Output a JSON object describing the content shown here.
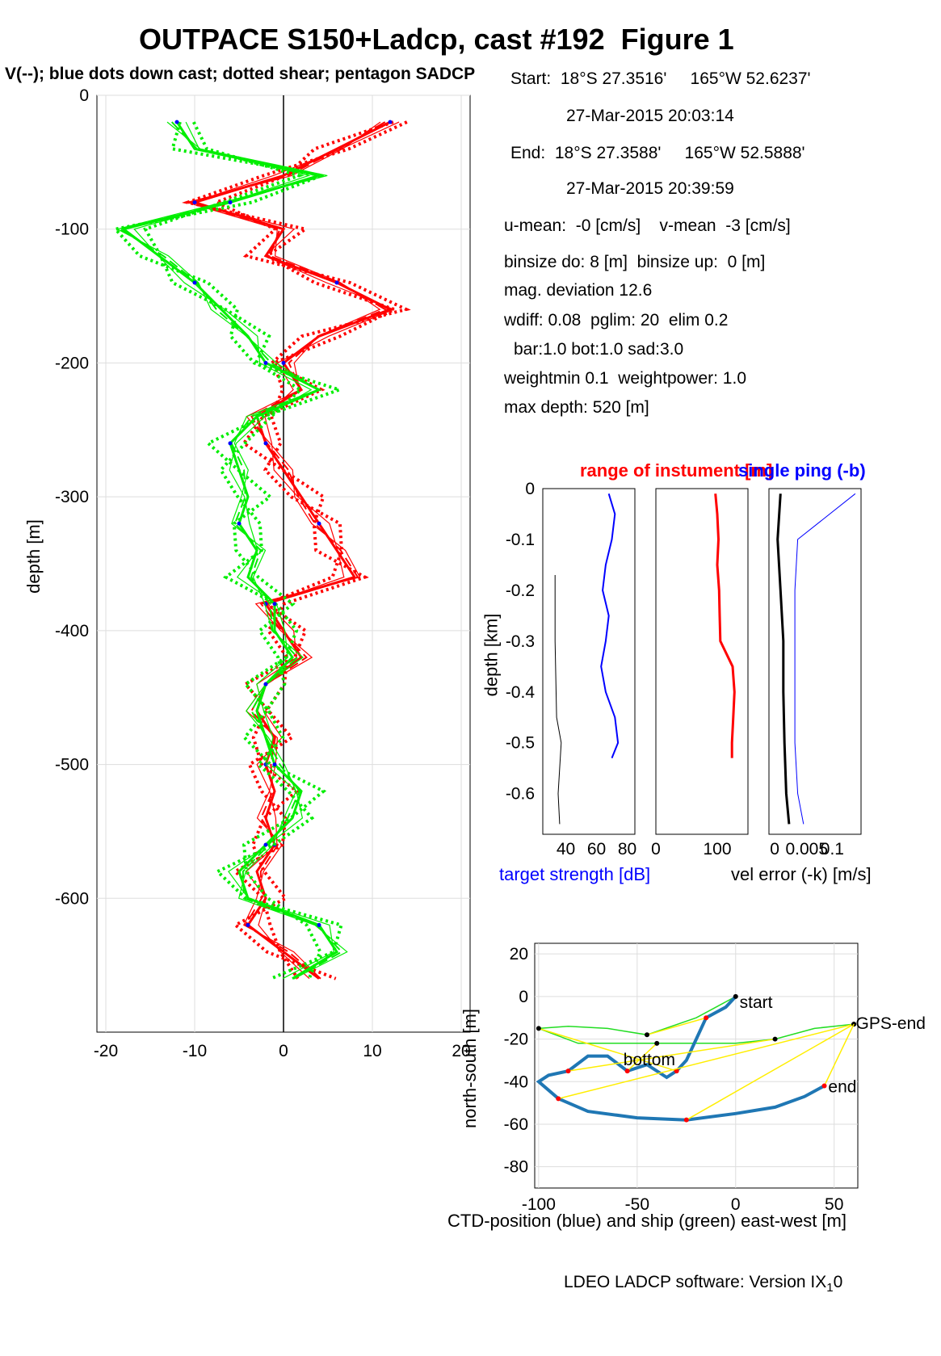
{
  "header": {
    "title": "OUTPACE S150+Ladcp, cast #192  Figure 1",
    "subtitle": "V(--); blue dots down cast; dotted shear; pentagon SADCP"
  },
  "info": {
    "start_pos": "Start:  18°S 27.3516'     165°W 52.6237'",
    "start_time": "27-Mar-2015 20:03:14",
    "end_pos": "End:  18°S 27.3588'     165°W 52.5888'",
    "end_time": "27-Mar-2015 20:39:59",
    "means": "u-mean:  -0 [cm/s]    v-mean  -3 [cm/s]",
    "binsize": "binsize do: 8 [m]  binsize up:  0 [m]",
    "magdev": "mag. deviation 12.6",
    "wdiff": "wdiff: 0.08  pglim: 20  elim 0.2",
    "bar": "bar:1.0 bot:1.0 sad:3.0",
    "weight": "weightmin 0.1  weightpower: 1.0",
    "maxdepth": "max depth: 520 [m]"
  },
  "small_panels": {
    "red_title": "range of instument [m]",
    "blue_title": "single ping (-b)",
    "ylabel": "depth [km]",
    "xlabel_left": "target strength [dB]",
    "xlabel_right": "vel error (-k) [m/s]"
  },
  "map_panel": {
    "ylabel": "north-south [m]",
    "xlabel": "CTD-position (blue) and ship (green) east-west [m]",
    "labels": {
      "start": "start",
      "end": "end",
      "gps_end": "GPS-end",
      "bottom": "bottom"
    }
  },
  "footer": {
    "software": "LDEO LADCP software: Version IX",
    "sub": "1",
    "tail": "0"
  },
  "colors": {
    "u": "#ff0000",
    "v": "#00ee00",
    "down_dots": "#0000ff",
    "ctd": "#1f77b4",
    "ship": "#22dd22",
    "link": "#ffee00"
  },
  "chart_data": [
    {
      "type": "line",
      "name": "velocity profiles",
      "ylabel": "depth [m]",
      "xlim": [
        -21,
        21
      ],
      "ylim": [
        -700,
        0
      ],
      "xticks": [
        -20,
        -10,
        0,
        10,
        20
      ],
      "yticks": [
        0,
        -100,
        -200,
        -300,
        -400,
        -500,
        -600
      ],
      "grid": true,
      "depth": [
        -20,
        -40,
        -60,
        -80,
        -100,
        -120,
        -140,
        -160,
        -180,
        -200,
        -220,
        -240,
        -260,
        -280,
        -300,
        -320,
        -340,
        -360,
        -380,
        -400,
        -420,
        -440,
        -460,
        -480,
        -500,
        -520,
        -540,
        -560,
        -580,
        -600,
        -620,
        -640,
        -660
      ],
      "series": [
        {
          "name": "u",
          "color": "#ff0000",
          "values": [
            12,
            6,
            0,
            -10,
            0,
            -2,
            6,
            12,
            4,
            0,
            2,
            -3,
            -2,
            0,
            2,
            4,
            6,
            8,
            -2,
            0,
            2,
            -2,
            -3,
            -1,
            -2,
            -1,
            -2,
            -1,
            -3,
            -2,
            -4,
            0,
            4
          ]
        },
        {
          "name": "v",
          "color": "#00ee00",
          "values": [
            -12,
            -10,
            4,
            -6,
            -18,
            -14,
            -10,
            -7,
            -4,
            -2,
            4,
            -3,
            -6,
            -5,
            -4,
            -5,
            -3,
            -4,
            -1,
            -1,
            1,
            -2,
            -3,
            -2,
            -1,
            2,
            1,
            -2,
            -5,
            -4,
            4,
            6,
            1
          ]
        }
      ]
    },
    {
      "type": "line",
      "name": "target strength / range / vel error",
      "ylim": [
        -0.68,
        0
      ],
      "yticks": [
        0,
        -0.1,
        -0.2,
        -0.3,
        -0.4,
        -0.5,
        -0.6
      ],
      "depth_km": [
        -0.01,
        -0.05,
        -0.1,
        -0.15,
        -0.2,
        -0.25,
        -0.3,
        -0.35,
        -0.4,
        -0.45,
        -0.5,
        -0.53
      ],
      "target_strength": [
        68,
        72,
        70,
        66,
        64,
        68,
        66,
        63,
        66,
        72,
        74,
        70
      ],
      "target_xticks": [
        40,
        60,
        80
      ],
      "weak_series_depth": [
        -0.17,
        -0.3,
        -0.45,
        -0.5,
        -0.6,
        -0.66
      ],
      "weak_series_values": [
        33,
        33,
        34,
        37,
        35,
        36
      ],
      "range": [
        97,
        100,
        102,
        100,
        103,
        104,
        105,
        125,
        128,
        126,
        124,
        124
      ],
      "range_xticks": [
        0,
        100
      ],
      "vel_error_depth": [
        -0.01,
        -0.1,
        -0.2,
        -0.3,
        -0.4,
        -0.5,
        -0.6,
        -0.66
      ],
      "vel_error_black": [
        0.01,
        0.005,
        0.01,
        0.015,
        0.015,
        0.017,
        0.02,
        0.025
      ],
      "vel_error_blue": [
        0.14,
        0.04,
        0.035,
        0.035,
        0.035,
        0.035,
        0.04,
        0.05
      ],
      "vel_xticks": [
        0,
        0.05,
        0.1
      ]
    },
    {
      "type": "line",
      "name": "position",
      "xlim": [
        -102,
        62
      ],
      "ylim": [
        -90,
        25
      ],
      "xticks": [
        -100,
        -50,
        0,
        50
      ],
      "yticks": [
        20,
        0,
        -20,
        -40,
        -60,
        -80
      ],
      "grid": true,
      "ctd_x": [
        0,
        -5,
        -15,
        -20,
        -25,
        -30,
        -35,
        -45,
        -55,
        -65,
        -75,
        -85,
        -95,
        -100,
        -90,
        -75,
        -50,
        -25,
        0,
        20,
        35,
        45
      ],
      "ctd_y": [
        0,
        -5,
        -10,
        -20,
        -30,
        -35,
        -38,
        -32,
        -35,
        -28,
        -28,
        -35,
        -37,
        -40,
        -48,
        -54,
        -57,
        -58,
        -55,
        -52,
        -47,
        -42
      ],
      "ship_x": [
        0,
        -20,
        -45,
        -65,
        -85,
        -100,
        -80,
        -60,
        -40,
        -20,
        0,
        20,
        40,
        60
      ],
      "ship_y": [
        0,
        -10,
        -18,
        -15,
        -14,
        -15,
        -22,
        -22,
        -22,
        -22,
        -22,
        -20,
        -15,
        -13
      ]
    }
  ]
}
